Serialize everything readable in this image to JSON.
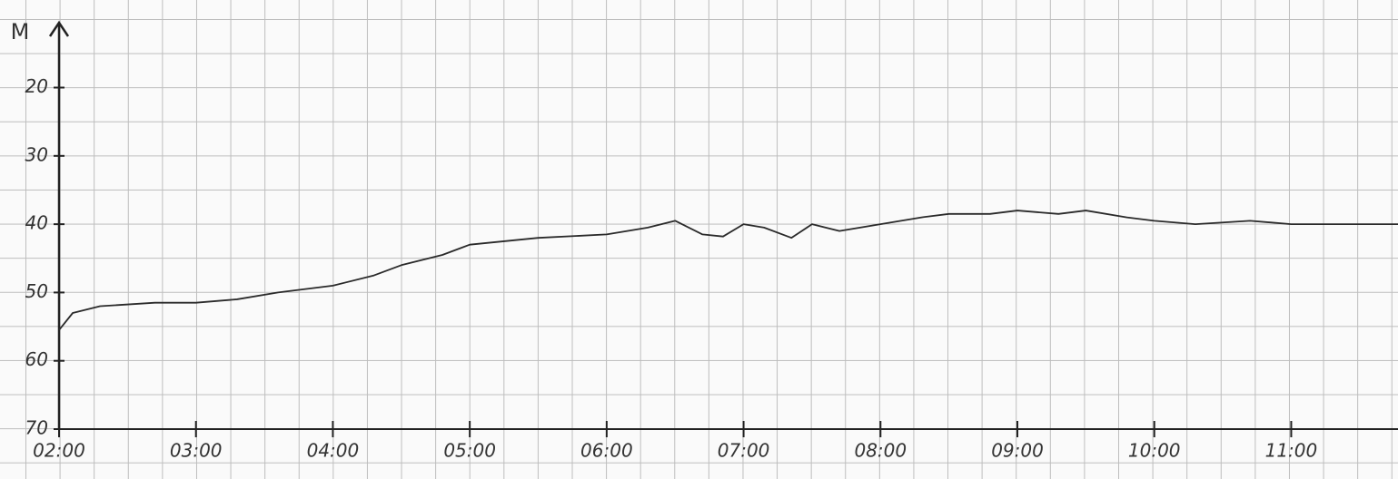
{
  "chart_data": {
    "type": "line",
    "y_label": "M",
    "x": [
      2.0,
      2.1,
      2.3,
      2.7,
      3.0,
      3.3,
      3.6,
      4.0,
      4.3,
      4.5,
      4.8,
      5.0,
      5.5,
      6.0,
      6.3,
      6.5,
      6.7,
      6.85,
      7.0,
      7.15,
      7.35,
      7.5,
      7.7,
      8.0,
      8.3,
      8.5,
      8.8,
      9.0,
      9.3,
      9.5,
      9.8,
      10.0,
      10.3,
      10.7,
      11.0,
      11.3,
      11.5,
      11.78
    ],
    "series": [
      {
        "color": "#2a2a2a",
        "values": [
          55.5,
          53,
          52,
          51.5,
          51.5,
          51,
          50,
          49,
          47.5,
          46,
          44.5,
          43,
          42,
          41.5,
          40.5,
          39.5,
          41.5,
          41.8,
          40,
          40.5,
          42,
          40,
          41,
          40,
          39,
          38.5,
          38.5,
          38,
          38.5,
          38,
          39,
          39.5,
          40,
          39.5,
          40,
          40,
          40,
          40
        ]
      }
    ],
    "xlim": [
      2,
      11.78
    ],
    "xticks": [
      {
        "value": 2,
        "label": "02:00"
      },
      {
        "value": 3,
        "label": "03:00"
      },
      {
        "value": 4,
        "label": "04:00"
      },
      {
        "value": 5,
        "label": "05:00"
      },
      {
        "value": 6,
        "label": "06:00"
      },
      {
        "value": 7,
        "label": "07:00"
      },
      {
        "value": 8,
        "label": "08:00"
      },
      {
        "value": 9,
        "label": "09:00"
      },
      {
        "value": 10,
        "label": "10:00"
      },
      {
        "value": 11,
        "label": "11:00"
      }
    ],
    "ylim": [
      70,
      10.5
    ],
    "yticks": [
      20,
      30,
      40,
      50,
      60,
      70
    ]
  }
}
